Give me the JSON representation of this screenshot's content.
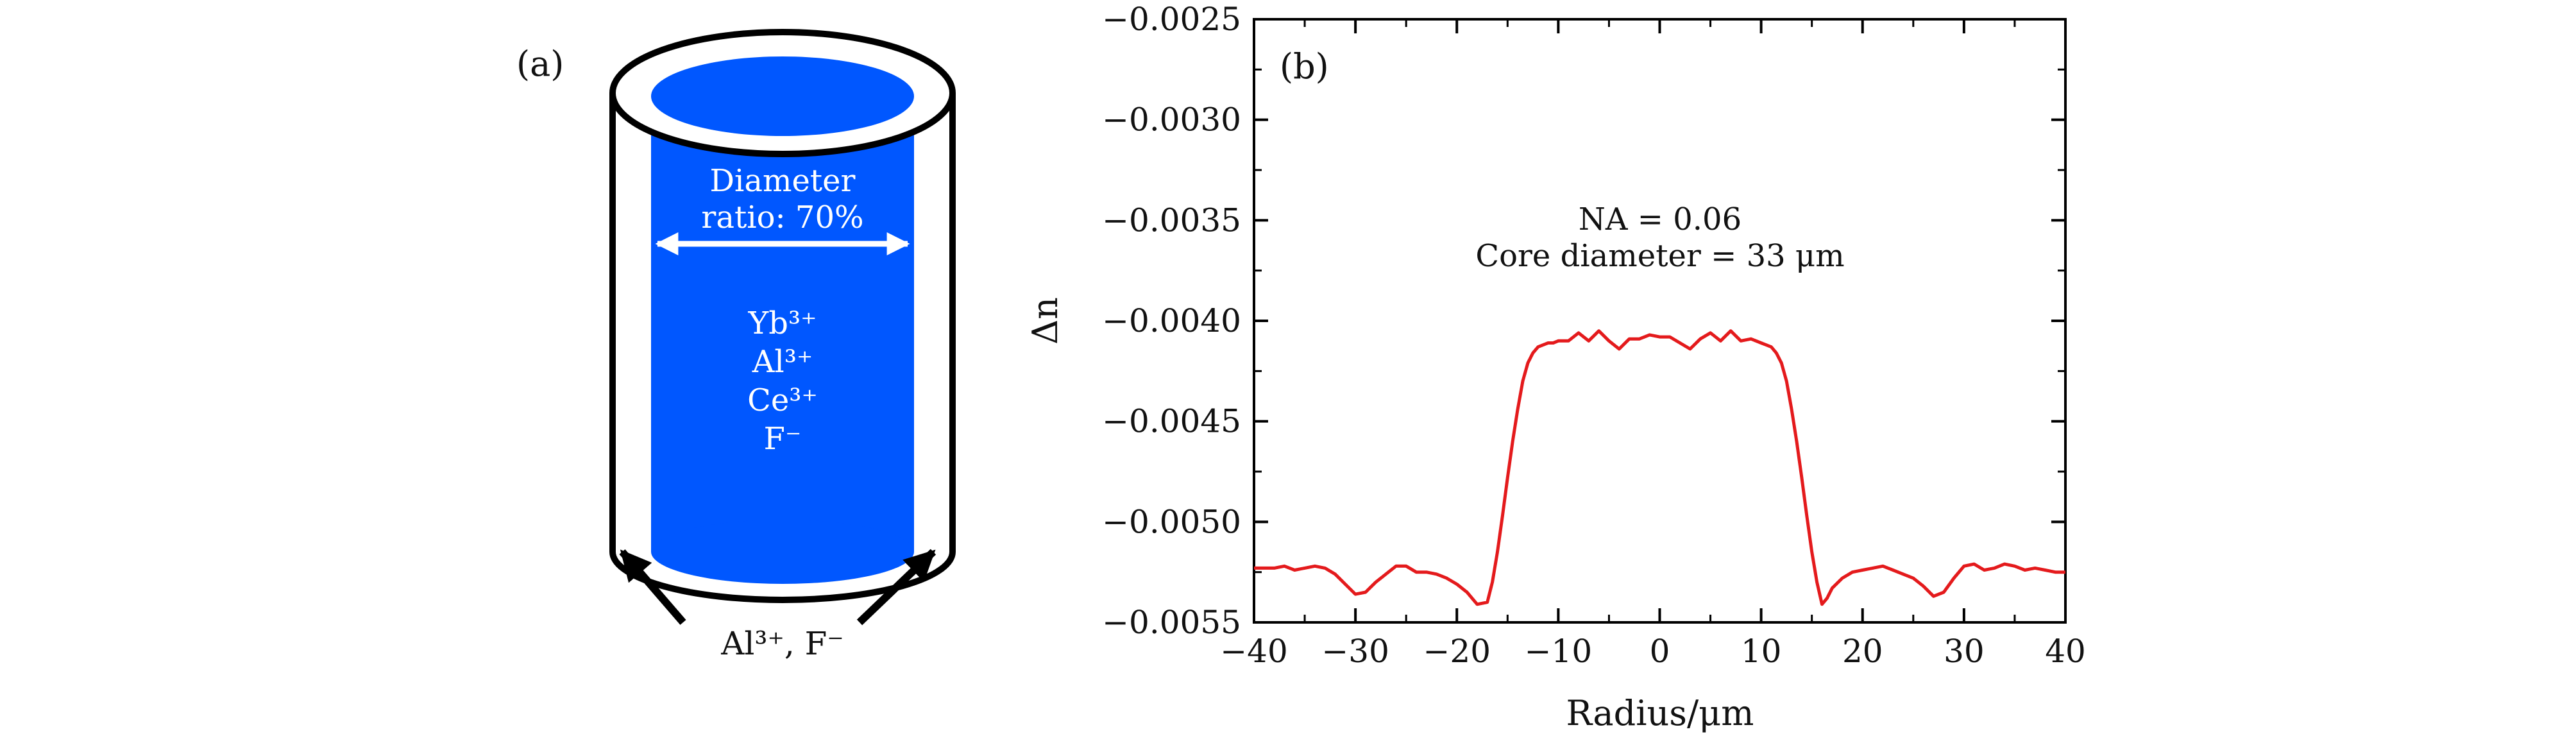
{
  "panel_a": {
    "label": "(a)",
    "diameter_label_line1": "Diameter",
    "diameter_label_line2": "ratio: 70%",
    "core_ions": [
      "Yb³⁺",
      "Al³⁺",
      "Ce³⁺",
      "F⁻"
    ],
    "cladding_ions": "Al³⁺, F⁻",
    "colors": {
      "core": "#0057ff",
      "outline": "#000000",
      "arrow": "#ffffff"
    }
  },
  "chart_data": {
    "type": "line",
    "panel_label": "(b)",
    "xlabel": "Radius/μm",
    "ylabel": "Δn",
    "xlim": [
      -40,
      40
    ],
    "ylim": [
      -0.0055,
      -0.0025
    ],
    "x_ticks": [
      -40,
      -30,
      -20,
      -10,
      0,
      10,
      20,
      30,
      40
    ],
    "x_tick_labels": [
      "−40",
      "−30",
      "−20",
      "−10",
      "0",
      "10",
      "20",
      "30",
      "40"
    ],
    "y_ticks": [
      -0.0025,
      -0.003,
      -0.0035,
      -0.004,
      -0.0045,
      -0.005,
      -0.0055
    ],
    "y_tick_labels": [
      "−0.0025",
      "−0.0030",
      "−0.0035",
      "−0.0040",
      "−0.0045",
      "−0.0050",
      "−0.0055"
    ],
    "annotations": [
      "NA = 0.06",
      "Core diameter = 33 μm"
    ],
    "grid": false,
    "series": [
      {
        "color": "#e41a1c",
        "x": [
          -40,
          -38,
          -37,
          -36,
          -35,
          -34,
          -33,
          -32,
          -31,
          -30,
          -29,
          -28,
          -27,
          -26,
          -25,
          -24,
          -23,
          -22,
          -21,
          -20,
          -19,
          -18,
          -17,
          -16.5,
          -16,
          -15.5,
          -15,
          -14.5,
          -14,
          -13.5,
          -13,
          -12.5,
          -12,
          -11.5,
          -11,
          -10.5,
          -10,
          -9,
          -8,
          -7,
          -6,
          -5,
          -4,
          -3,
          -2,
          -1,
          0,
          1,
          2,
          3,
          4,
          5,
          6,
          7,
          8,
          9,
          10,
          10.5,
          11,
          11.5,
          12,
          12.5,
          13,
          13.5,
          14,
          14.5,
          15,
          15.5,
          16,
          16.5,
          17,
          18,
          19,
          20,
          21,
          22,
          23,
          24,
          25,
          26,
          27,
          28,
          29,
          30,
          31,
          32,
          33,
          34,
          35,
          36,
          37,
          38,
          39,
          40
        ],
        "y": [
          -0.00523,
          -0.00523,
          -0.00522,
          -0.00524,
          -0.00523,
          -0.00522,
          -0.00523,
          -0.00526,
          -0.00531,
          -0.00536,
          -0.00535,
          -0.0053,
          -0.00526,
          -0.00522,
          -0.00522,
          -0.00525,
          -0.00525,
          -0.00526,
          -0.00528,
          -0.00531,
          -0.00535,
          -0.00541,
          -0.0054,
          -0.0053,
          -0.00515,
          -0.00497,
          -0.00478,
          -0.0046,
          -0.00444,
          -0.0043,
          -0.00421,
          -0.00416,
          -0.00413,
          -0.00412,
          -0.00411,
          -0.00411,
          -0.0041,
          -0.0041,
          -0.00406,
          -0.0041,
          -0.00405,
          -0.0041,
          -0.00414,
          -0.00409,
          -0.00409,
          -0.00407,
          -0.00408,
          -0.00408,
          -0.00411,
          -0.00414,
          -0.00409,
          -0.00406,
          -0.0041,
          -0.00405,
          -0.0041,
          -0.00409,
          -0.00411,
          -0.00412,
          -0.00413,
          -0.00416,
          -0.00421,
          -0.0043,
          -0.00444,
          -0.0046,
          -0.00478,
          -0.00497,
          -0.00515,
          -0.0053,
          -0.00541,
          -0.00538,
          -0.00533,
          -0.00528,
          -0.00525,
          -0.00524,
          -0.00523,
          -0.00522,
          -0.00524,
          -0.00526,
          -0.00528,
          -0.00532,
          -0.00537,
          -0.00535,
          -0.00528,
          -0.00522,
          -0.00521,
          -0.00524,
          -0.00523,
          -0.00521,
          -0.00522,
          -0.00524,
          -0.00523,
          -0.00524,
          -0.00525,
          -0.00525
        ]
      }
    ]
  }
}
